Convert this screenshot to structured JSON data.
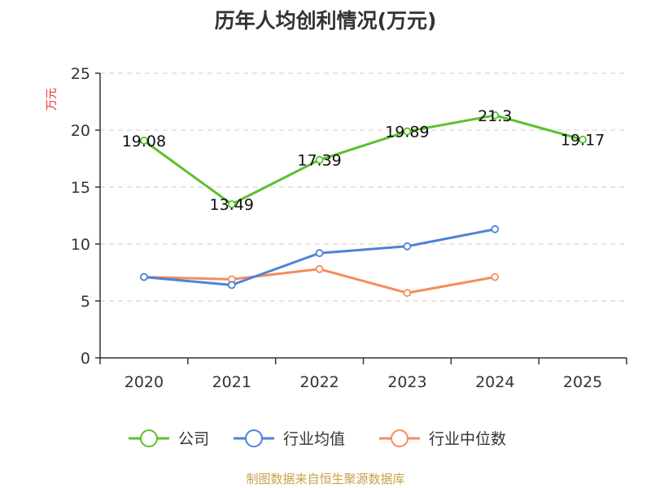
{
  "chart_data": {
    "type": "line",
    "title": "历年人均创利情况(万元)",
    "ylabel": "万元",
    "categories": [
      "2020",
      "2021",
      "2022",
      "2023",
      "2024",
      "2025"
    ],
    "ylim": [
      0,
      25
    ],
    "yticks": [
      0,
      5,
      10,
      15,
      20,
      25
    ],
    "grid": true,
    "legend_position": "bottom",
    "series": [
      {
        "name": "公司",
        "color": "#5cc02d",
        "values": [
          19.08,
          13.49,
          17.39,
          19.89,
          21.3,
          19.17
        ],
        "labels": [
          "19.08",
          "13.49",
          "17.39",
          "19.89",
          "21.3",
          "19.17"
        ]
      },
      {
        "name": "行业均值",
        "color": "#4e82d9",
        "values": [
          7.1,
          6.4,
          9.2,
          9.8,
          11.3,
          null
        ]
      },
      {
        "name": "行业中位数",
        "color": "#f48d5c",
        "values": [
          7.1,
          6.9,
          7.8,
          5.7,
          7.1,
          null
        ]
      }
    ]
  },
  "source_text": "制图数据来自恒生聚源数据库"
}
